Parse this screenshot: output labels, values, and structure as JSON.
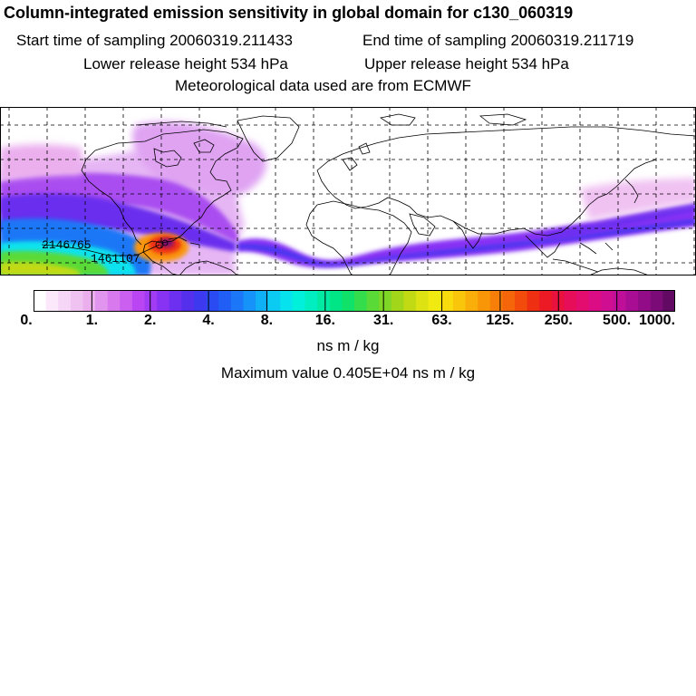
{
  "header": {
    "title": "Column-integrated emission sensitivity in global domain for c130_060319",
    "start_label": "Start time of sampling 20060319.211433",
    "end_label": "End time of sampling 20060319.211719",
    "lower_label": "Lower release height  534 hPa",
    "upper_label": "Upper release height  534 hPa",
    "met_label": "Meteorological data used are from ECMWF"
  },
  "map": {
    "trajectory_labels": [
      "2146765",
      "1461107"
    ],
    "colors": {
      "coast": "#000000",
      "grid": "#000000",
      "bg": "#ffffff"
    }
  },
  "colorbar": {
    "colors": [
      "#ffffff",
      "#fbe9fb",
      "#f6d6f6",
      "#f0c2f2",
      "#ebafee",
      "#e295ee",
      "#d87aee",
      "#ca5ff0",
      "#b946f2",
      "#a13bf4",
      "#8833f4",
      "#6d2ff0",
      "#5530ec",
      "#3c39ee",
      "#2a4af2",
      "#205ef5",
      "#1b77f7",
      "#1693f8",
      "#10b0f6",
      "#0ccbf3",
      "#07e3ee",
      "#00f0dc",
      "#00eec0",
      "#00eaa3",
      "#00e585",
      "#10e168",
      "#34dd4c",
      "#5ada37",
      "#7ed726",
      "#a2d61a",
      "#c2da14",
      "#dde312",
      "#f0ea10",
      "#f8dc0d",
      "#fac60b",
      "#faae09",
      "#f99608",
      "#f77e08",
      "#f56509",
      "#f24b0b",
      "#ef2f12",
      "#ec1a25",
      "#e9113e",
      "#e60e58",
      "#e30d70",
      "#dc0d84",
      "#d00e92",
      "#bf0e98",
      "#a90d94",
      "#920c88",
      "#7a0b77",
      "#620a63"
    ],
    "tick_labels": [
      "0.",
      "1.",
      "2.",
      "4.",
      "8.",
      "16.",
      "31.",
      "63.",
      "125.",
      "250.",
      "500.",
      "1000."
    ],
    "units": "ns m / kg",
    "maximum": "Maximum value  0.405E+04 ns m / kg"
  }
}
